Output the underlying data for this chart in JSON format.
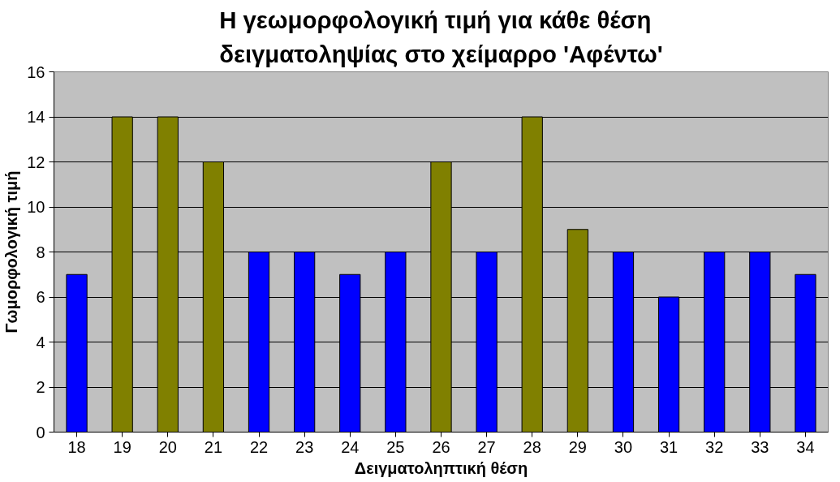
{
  "chart_data": {
    "type": "bar",
    "title": "Η γεωμορφολογική τιμή για κάθε θέση δειγματοληψίας στο χείμαρρο 'Αφέντω'",
    "xlabel": "Δειγματοληπτική θέση",
    "ylabel": "Γωμορφολογική τιμή",
    "categories": [
      "18",
      "19",
      "20",
      "21",
      "22",
      "23",
      "24",
      "25",
      "26",
      "27",
      "28",
      "29",
      "30",
      "31",
      "32",
      "33",
      "34"
    ],
    "values": [
      7,
      14,
      14,
      12,
      8,
      8,
      7,
      8,
      12,
      8,
      14,
      9,
      8,
      6,
      8,
      8,
      7
    ],
    "colors": [
      "#0000ff",
      "#808000",
      "#808000",
      "#808000",
      "#0000ff",
      "#0000ff",
      "#0000ff",
      "#0000ff",
      "#808000",
      "#0000ff",
      "#808000",
      "#808000",
      "#0000ff",
      "#0000ff",
      "#0000ff",
      "#0000ff",
      "#0000ff"
    ],
    "ylim": [
      0,
      16
    ],
    "yticks": [
      0,
      2,
      4,
      6,
      8,
      10,
      12,
      14,
      16
    ],
    "grid": "y"
  }
}
